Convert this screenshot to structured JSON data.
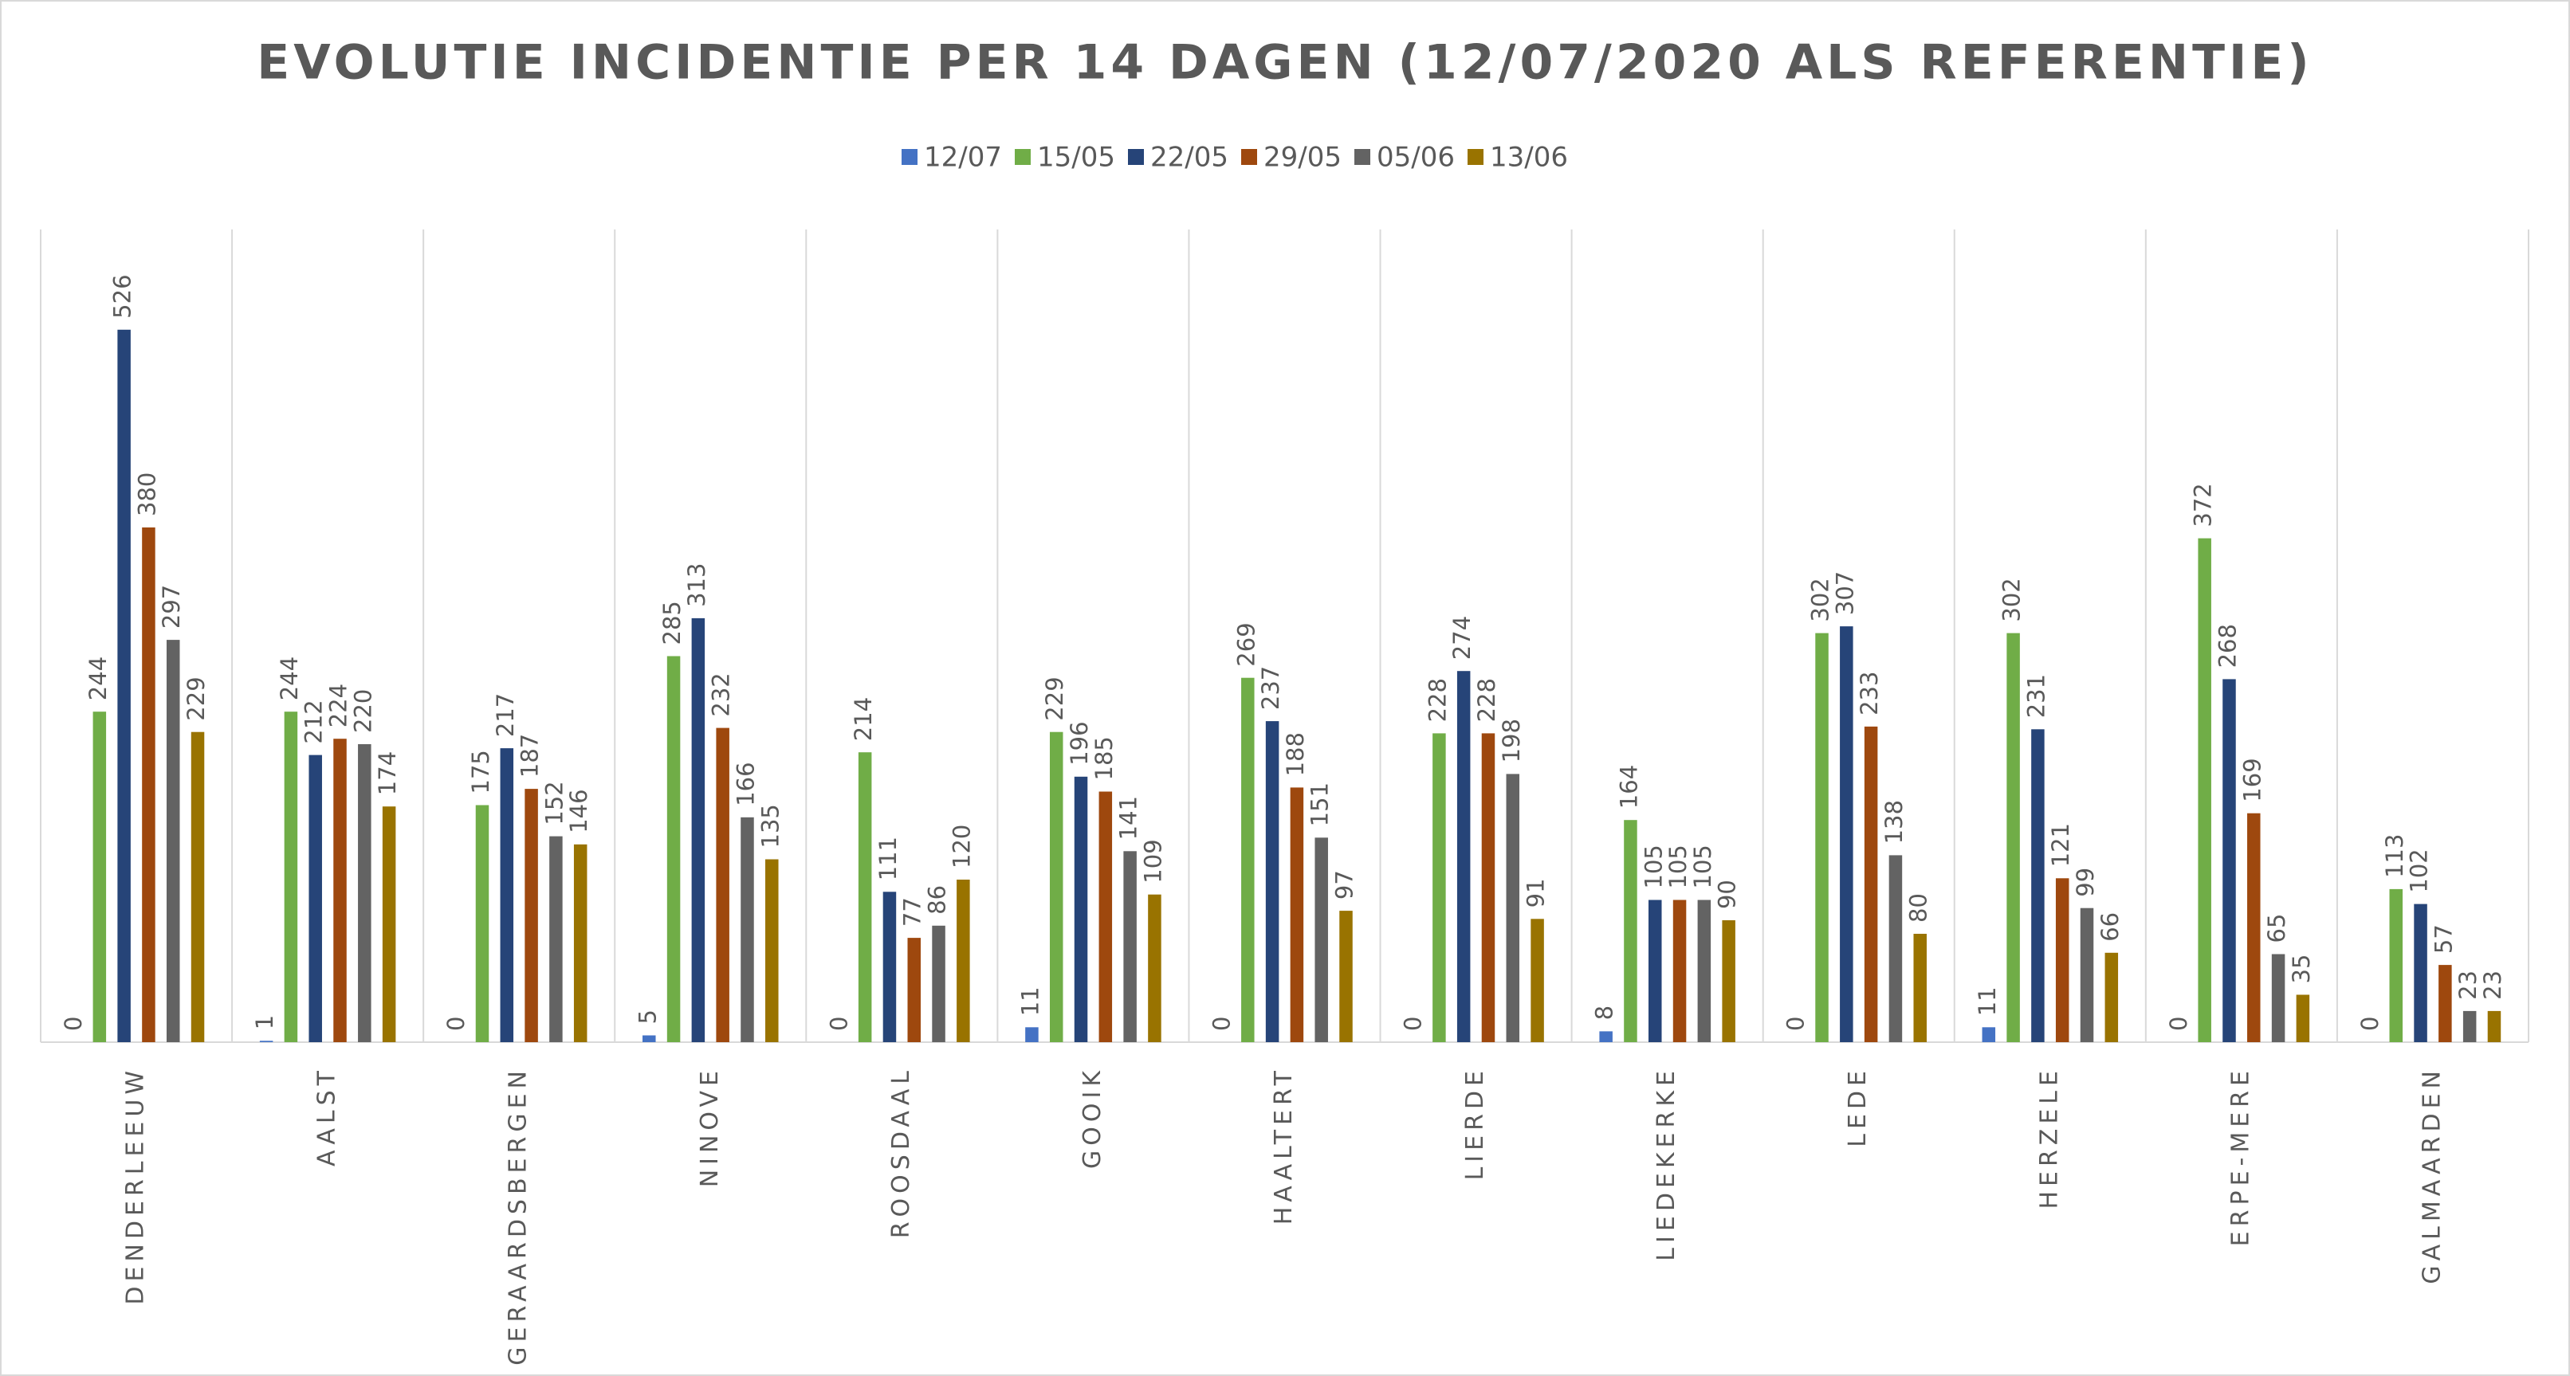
{
  "chart_data": {
    "type": "bar",
    "title": "EVOLUTIE INCIDENTIE PER 14 DAGEN (12/07/2020 ALS REFERENTIE)",
    "categories": [
      "DENDERLEEUW",
      "AALST",
      "GERAARDSBERGEN",
      "NINOVE",
      "ROOSDAAL",
      "GOOIK",
      "HAALTERT",
      "LIERDE",
      "LIEDEKERKE",
      "LEDE",
      "HERZELE",
      "ERPE-MERE",
      "GALMAARDEN"
    ],
    "series": [
      {
        "name": "12/07",
        "color": "#4472c4",
        "values": [
          0,
          1,
          0,
          5,
          0,
          11,
          0,
          0,
          8,
          0,
          11,
          0,
          0
        ]
      },
      {
        "name": "15/05",
        "color": "#70ad47",
        "values": [
          244,
          244,
          175,
          285,
          214,
          229,
          269,
          228,
          164,
          302,
          302,
          372,
          113
        ]
      },
      {
        "name": "22/05",
        "color": "#264478",
        "values": [
          526,
          212,
          217,
          313,
          111,
          196,
          237,
          274,
          105,
          307,
          231,
          268,
          102
        ]
      },
      {
        "name": "29/05",
        "color": "#9e480e",
        "values": [
          380,
          224,
          187,
          232,
          77,
          185,
          188,
          228,
          105,
          233,
          121,
          169,
          57
        ]
      },
      {
        "name": "05/06",
        "color": "#636363",
        "values": [
          297,
          220,
          152,
          166,
          86,
          141,
          151,
          198,
          105,
          138,
          99,
          65,
          23
        ]
      },
      {
        "name": "13/06",
        "color": "#997300",
        "values": [
          229,
          174,
          146,
          135,
          120,
          109,
          97,
          91,
          90,
          80,
          66,
          35,
          23
        ]
      }
    ],
    "ylim": [
      0,
      600
    ],
    "legend_position": "top"
  }
}
